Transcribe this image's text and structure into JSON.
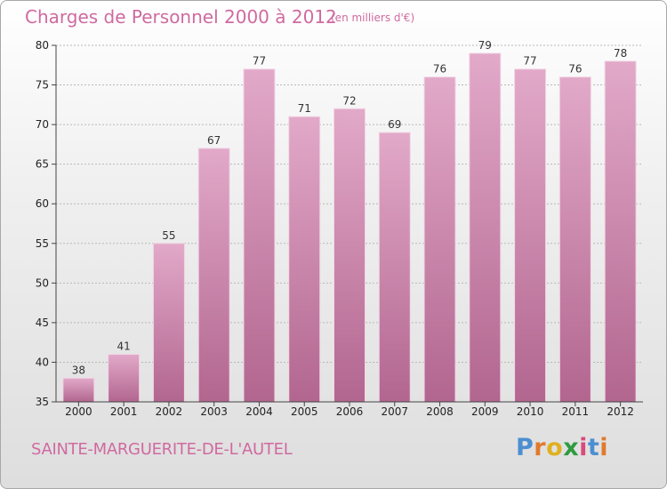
{
  "chart_data": {
    "type": "bar",
    "title": "Charges de Personnel 2000 à 2012",
    "unit": "(en milliers d'€)",
    "categories": [
      "2000",
      "2001",
      "2002",
      "2003",
      "2004",
      "2005",
      "2006",
      "2007",
      "2008",
      "2009",
      "2010",
      "2011",
      "2012"
    ],
    "values": [
      38,
      41,
      55,
      67,
      77,
      71,
      72,
      69,
      76,
      79,
      77,
      76,
      78
    ],
    "ylim": [
      35,
      80
    ],
    "yticks": [
      35,
      40,
      45,
      50,
      55,
      60,
      65,
      70,
      75,
      80
    ],
    "grid": true,
    "bar_color": "#c887ad",
    "xlabel": "",
    "ylabel": ""
  },
  "footer": {
    "town": "SAINTE-MARGUERITE-DE-L'AUTEL",
    "logo_letters": [
      "P",
      "r",
      "o",
      "x",
      "i",
      "t",
      "i"
    ],
    "logo_colors": [
      "#4c8fd1",
      "#e07a2e",
      "#e0b020",
      "#2f9a3e",
      "#d84b7a",
      "#4c8fd1",
      "#e07a2e"
    ]
  },
  "colors": {
    "title": "#d06aa0",
    "gridline": "#b8b8b8",
    "axis": "#444444"
  }
}
